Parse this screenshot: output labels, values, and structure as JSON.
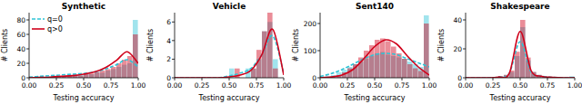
{
  "chart_data": [
    {
      "type": "histogram",
      "title": "Synthetic",
      "x_label": "Testing accuracy",
      "y_label": "# Clients",
      "legend": "upper left",
      "bins": [
        0,
        0.05,
        0.1,
        0.15,
        0.2,
        0.25,
        0.3,
        0.35,
        0.4,
        0.45,
        0.5,
        0.55,
        0.6,
        0.65,
        0.7,
        0.75,
        0.8,
        0.85,
        0.9,
        0.95,
        1.0
      ],
      "curve_x": [
        0,
        0.1,
        0.2,
        0.3,
        0.4,
        0.5,
        0.6,
        0.7,
        0.8,
        0.9,
        1.0
      ],
      "xlim": [
        0,
        1.0
      ],
      "xticks": [
        {
          "value": 0,
          "label": "0.00"
        },
        {
          "value": 0.25,
          "label": "0.25"
        },
        {
          "value": 0.5,
          "label": "0.50"
        },
        {
          "value": 0.75,
          "label": "0.75"
        },
        {
          "value": 1.0,
          "label": "1.00"
        }
      ],
      "ylim": [
        0,
        90
      ],
      "yticks": [
        0,
        20,
        40,
        60,
        80
      ],
      "series": [
        {
          "name": "q=0",
          "color": "#2ec4d6",
          "line_style": "dashed",
          "values": [
            1,
            2,
            1,
            2,
            3,
            2,
            3,
            4,
            5,
            4,
            6,
            5,
            8,
            7,
            10,
            12,
            15,
            18,
            20,
            80
          ],
          "curve_values": [
            1,
            2,
            3,
            4,
            5,
            6,
            8,
            12,
            18,
            25,
            15
          ]
        },
        {
          "name": "q>0",
          "color": "#d0021b",
          "line_style": "solid",
          "values": [
            0,
            0,
            1,
            1,
            2,
            1,
            2,
            3,
            4,
            3,
            5,
            6,
            8,
            10,
            12,
            15,
            20,
            25,
            30,
            60
          ],
          "curve_values": [
            0,
            0.5,
            1,
            2,
            3,
            5,
            8,
            14,
            24,
            36,
            20
          ]
        }
      ]
    },
    {
      "type": "histogram",
      "title": "Vehicle",
      "x_label": "Testing accuracy",
      "y_label": "# Clients",
      "bins": [
        0,
        0.05,
        0.1,
        0.15,
        0.2,
        0.25,
        0.3,
        0.35,
        0.4,
        0.45,
        0.5,
        0.55,
        0.6,
        0.65,
        0.7,
        0.75,
        0.8,
        0.85,
        0.9,
        0.95,
        1.0
      ],
      "curve_x": [
        0,
        0.1,
        0.2,
        0.3,
        0.4,
        0.5,
        0.6,
        0.7,
        0.8,
        0.9,
        1.0
      ],
      "xlim": [
        0,
        1.0
      ],
      "xticks": [
        {
          "value": 0,
          "label": "0.00"
        },
        {
          "value": 0.25,
          "label": "0.25"
        },
        {
          "value": 0.5,
          "label": "0.50"
        },
        {
          "value": 0.75,
          "label": "0.75"
        },
        {
          "value": 1.0,
          "label": "1.00"
        }
      ],
      "ylim": [
        0,
        7
      ],
      "yticks": [
        0,
        2,
        4,
        6
      ],
      "series": [
        {
          "color": "#2ec4d6",
          "line_style": "dashed",
          "values": [
            0,
            0,
            0,
            0,
            0,
            0,
            0,
            0,
            0,
            0,
            1,
            0,
            0,
            1,
            1,
            2,
            5,
            6,
            2,
            0
          ],
          "curve_values": [
            0,
            0,
            0,
            0,
            0,
            0.2,
            0.5,
            1,
            2.5,
            4.5,
            0.5
          ]
        },
        {
          "color": "#d0021b",
          "line_style": "solid",
          "values": [
            0,
            0,
            0,
            0,
            0,
            0,
            0,
            0,
            0,
            0,
            0,
            1,
            0,
            0,
            1,
            3,
            5,
            7,
            1,
            0
          ],
          "curve_values": [
            0,
            0,
            0,
            0,
            0,
            0.1,
            0.3,
            0.8,
            2.5,
            5.2,
            0.3
          ]
        }
      ]
    },
    {
      "type": "histogram",
      "title": "Sent140",
      "x_label": "Testing accuracy",
      "y_label": "# Clients",
      "bins": [
        0,
        0.05,
        0.1,
        0.15,
        0.2,
        0.25,
        0.3,
        0.35,
        0.4,
        0.45,
        0.5,
        0.55,
        0.6,
        0.65,
        0.7,
        0.75,
        0.8,
        0.85,
        0.9,
        0.95,
        1.0
      ],
      "curve_x": [
        0,
        0.1,
        0.2,
        0.3,
        0.4,
        0.5,
        0.6,
        0.7,
        0.8,
        0.9,
        1.0
      ],
      "xlim": [
        0,
        1.0
      ],
      "xticks": [
        {
          "value": 0,
          "label": "0.00"
        },
        {
          "value": 0.25,
          "label": "0.25"
        },
        {
          "value": 0.5,
          "label": "0.50"
        },
        {
          "value": 0.75,
          "label": "0.75"
        },
        {
          "value": 1.0,
          "label": "1.00"
        }
      ],
      "ylim": [
        0,
        240
      ],
      "yticks": [
        0,
        100,
        200
      ],
      "series": [
        {
          "color": "#2ec4d6",
          "line_style": "dashed",
          "values": [
            0,
            5,
            10,
            20,
            30,
            40,
            50,
            60,
            70,
            80,
            90,
            95,
            85,
            80,
            75,
            70,
            60,
            50,
            40,
            230
          ],
          "curve_values": [
            5,
            15,
            30,
            50,
            70,
            85,
            90,
            85,
            70,
            55,
            40
          ]
        },
        {
          "color": "#d0021b",
          "line_style": "solid",
          "values": [
            0,
            2,
            5,
            10,
            20,
            35,
            50,
            75,
            100,
            120,
            140,
            145,
            135,
            115,
            90,
            70,
            50,
            35,
            25,
            200
          ],
          "curve_values": [
            0,
            3,
            10,
            30,
            70,
            115,
            140,
            125,
            80,
            40,
            10
          ]
        }
      ]
    },
    {
      "type": "histogram",
      "title": "Shakespeare",
      "x_label": "Testing accuracy",
      "y_label": "# Clients",
      "bins": [
        0,
        0.05,
        0.1,
        0.15,
        0.2,
        0.25,
        0.3,
        0.35,
        0.4,
        0.45,
        0.5,
        0.55,
        0.6,
        0.65,
        0.7,
        0.75,
        0.8,
        0.85,
        0.9,
        0.95,
        1.0
      ],
      "curve_x": [
        0,
        0.1,
        0.2,
        0.3,
        0.4,
        0.5,
        0.6,
        0.7,
        0.8,
        0.9,
        1.0
      ],
      "xlim": [
        0,
        1.0
      ],
      "xticks": [
        {
          "value": 0,
          "label": "0.00"
        },
        {
          "value": 0.25,
          "label": "0.25"
        },
        {
          "value": 0.5,
          "label": "0.50"
        },
        {
          "value": 0.75,
          "label": "0.75"
        },
        {
          "value": 1.0,
          "label": "1.00"
        }
      ],
      "ylim": [
        0,
        45
      ],
      "yticks": [
        0,
        20,
        40
      ],
      "series": [
        {
          "color": "#2ec4d6",
          "line_style": "dashed",
          "values": [
            0,
            0,
            0,
            0,
            0,
            0,
            1,
            2,
            4,
            15,
            35,
            12,
            4,
            2,
            1,
            0,
            0,
            0,
            0,
            1
          ],
          "curve_values": [
            0,
            0,
            0,
            0.5,
            3,
            25,
            4,
            1,
            0.3,
            0,
            0
          ]
        },
        {
          "color": "#d0021b",
          "line_style": "solid",
          "values": [
            0,
            0,
            0,
            0,
            0,
            0,
            1,
            2,
            5,
            18,
            40,
            14,
            4,
            2,
            1,
            0,
            0,
            0,
            0,
            0
          ],
          "curve_values": [
            0,
            0,
            0,
            0.5,
            3,
            32,
            5,
            1,
            0.3,
            0,
            0
          ]
        }
      ]
    }
  ]
}
